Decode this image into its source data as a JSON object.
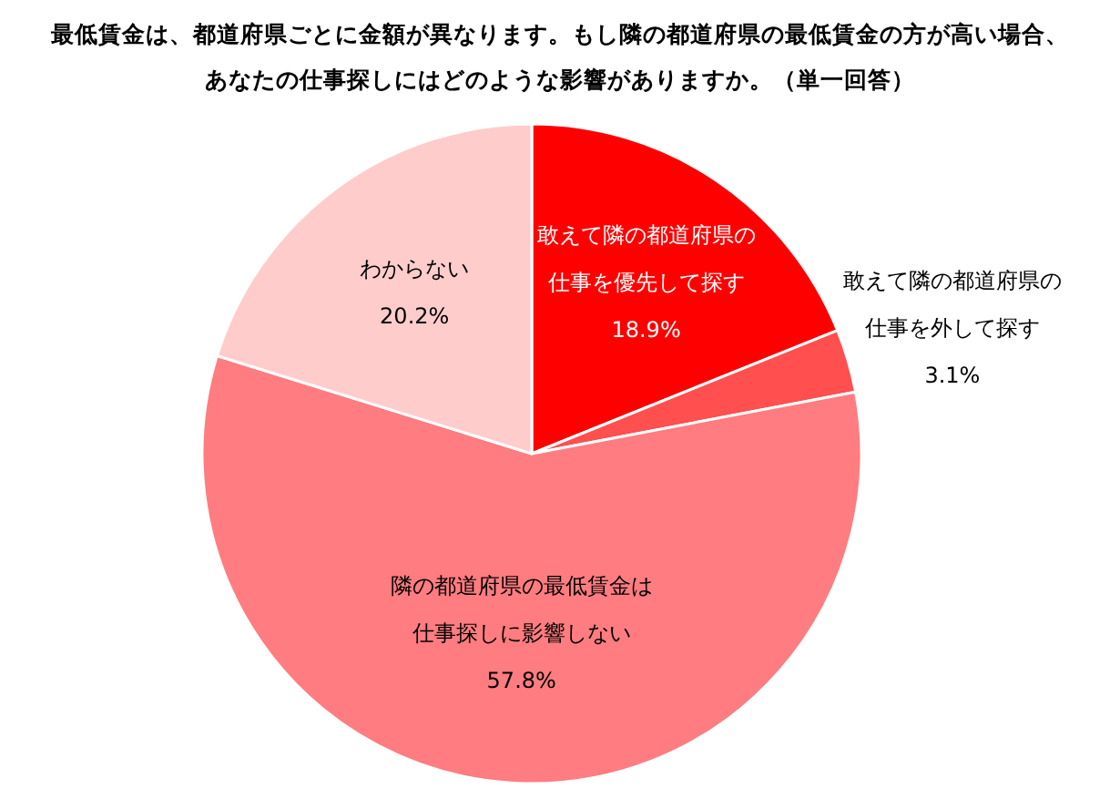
{
  "chart_data": {
    "type": "pie",
    "title": "最低賃金は、都道府県ごとに金額が異なります。もし隣の都道府県の最低賃金の方が高い場合、あなたの仕事探しにはどのような影響がありますか。（単一回答）",
    "categories": [
      "敢えて隣の都道府県の仕事を優先して探す",
      "敢えて隣の都道府県の仕事を外して探す",
      "隣の都道府県の最低賃金は仕事探しに影響しない",
      "わからない"
    ],
    "values": [
      18.9,
      3.1,
      57.8,
      20.2
    ],
    "colors": [
      "#ff0000",
      "#ff4f4f",
      "#ff7c80",
      "#ffcccc"
    ],
    "value_labels": [
      "18.9%",
      "3.1%",
      "57.8%",
      "20.2%"
    ],
    "legend": false
  }
}
